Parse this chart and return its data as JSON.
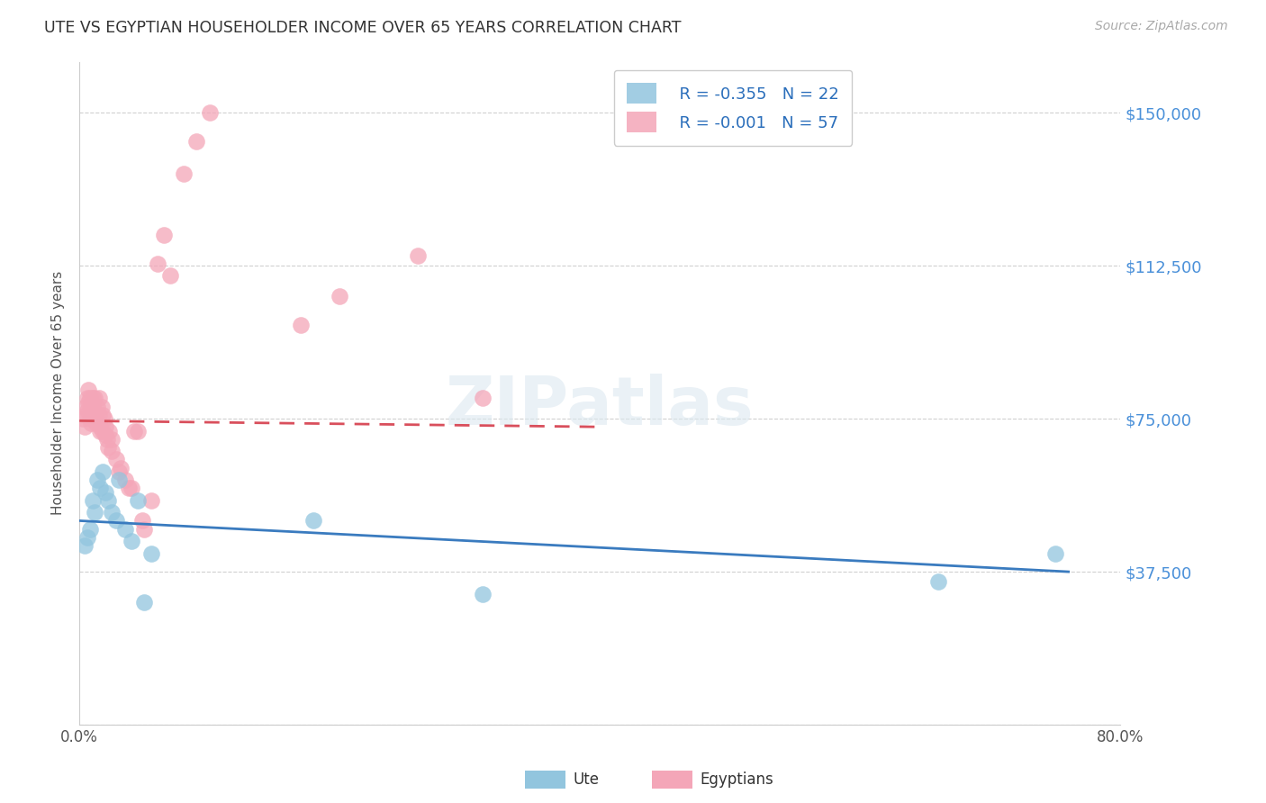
{
  "title": "UTE VS EGYPTIAN HOUSEHOLDER INCOME OVER 65 YEARS CORRELATION CHART",
  "source": "Source: ZipAtlas.com",
  "ylabel": "Householder Income Over 65 years",
  "watermark": "ZIPatlas",
  "legend_blue_r": "R = -0.355",
  "legend_blue_n": "N = 22",
  "legend_pink_r": "R = -0.001",
  "legend_pink_n": "N = 57",
  "legend_label_blue": "Ute",
  "legend_label_pink": "Egyptians",
  "yticks": [
    0,
    37500,
    75000,
    112500,
    150000
  ],
  "ytick_labels": [
    "",
    "$37,500",
    "$75,000",
    "$112,500",
    "$150,000"
  ],
  "xlim": [
    0.0,
    0.8
  ],
  "ylim": [
    0,
    162500
  ],
  "blue_color": "#92c5de",
  "pink_color": "#f4a6b8",
  "trendline_blue_color": "#3a7bbf",
  "trendline_pink_color": "#d94f5c",
  "grid_color": "#d0d0d0",
  "background_color": "#ffffff",
  "blue_scatter_x": [
    0.004,
    0.006,
    0.008,
    0.01,
    0.012,
    0.014,
    0.016,
    0.018,
    0.02,
    0.022,
    0.025,
    0.028,
    0.03,
    0.035,
    0.04,
    0.045,
    0.05,
    0.055,
    0.18,
    0.31,
    0.66,
    0.75
  ],
  "blue_scatter_y": [
    44000,
    46000,
    48000,
    55000,
    52000,
    60000,
    58000,
    62000,
    57000,
    55000,
    52000,
    50000,
    60000,
    48000,
    45000,
    55000,
    30000,
    42000,
    50000,
    32000,
    35000,
    42000
  ],
  "pink_scatter_x": [
    0.003,
    0.004,
    0.005,
    0.005,
    0.006,
    0.006,
    0.007,
    0.007,
    0.008,
    0.008,
    0.009,
    0.009,
    0.01,
    0.01,
    0.01,
    0.011,
    0.012,
    0.012,
    0.013,
    0.014,
    0.015,
    0.015,
    0.015,
    0.016,
    0.016,
    0.017,
    0.018,
    0.018,
    0.019,
    0.02,
    0.02,
    0.021,
    0.022,
    0.023,
    0.025,
    0.025,
    0.028,
    0.03,
    0.032,
    0.035,
    0.038,
    0.04,
    0.042,
    0.045,
    0.048,
    0.05,
    0.055,
    0.06,
    0.065,
    0.07,
    0.08,
    0.09,
    0.1,
    0.17,
    0.2,
    0.26,
    0.31
  ],
  "pink_scatter_y": [
    75000,
    73000,
    78000,
    76000,
    80000,
    77000,
    82000,
    79000,
    80000,
    75000,
    78000,
    74000,
    80000,
    78000,
    76000,
    75000,
    80000,
    76000,
    74000,
    78000,
    80000,
    76000,
    74000,
    73000,
    72000,
    78000,
    76000,
    72000,
    75000,
    73000,
    71000,
    70000,
    68000,
    72000,
    70000,
    67000,
    65000,
    62000,
    63000,
    60000,
    58000,
    58000,
    72000,
    72000,
    50000,
    48000,
    55000,
    113000,
    120000,
    110000,
    135000,
    143000,
    150000,
    98000,
    105000,
    115000,
    80000
  ]
}
